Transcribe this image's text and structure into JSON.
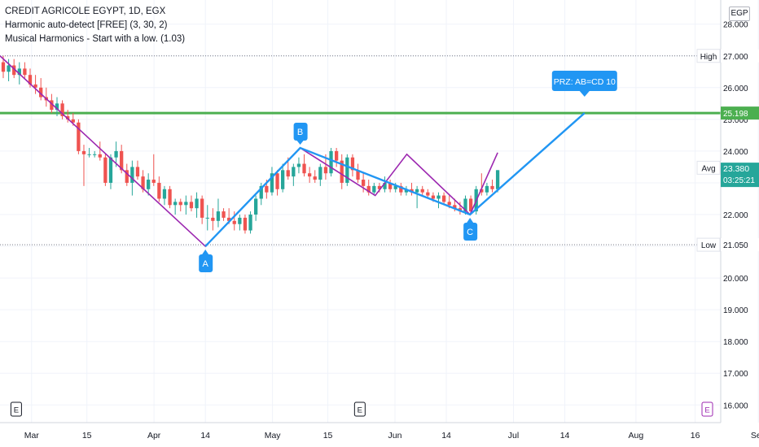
{
  "legend": {
    "symbol": "CREDIT AGRICOLE EGYPT, 1D, EGX",
    "indicator1": "Harmonic auto-detect [FREE] (3, 30, 2)",
    "indicator2": "Musical Harmonics - Start with a low. (1.03)"
  },
  "currency": "EGP",
  "chart_data": {
    "type": "candlestick",
    "x_ticks": [
      "Mar",
      "15",
      "Apr",
      "14",
      "May",
      "15",
      "Jun",
      "14",
      "Jul",
      "14",
      "Aug",
      "16",
      "Sep"
    ],
    "y_ticks": [
      "16.000",
      "17.000",
      "18.000",
      "19.000",
      "20.000",
      "21.000",
      "22.000",
      "23.000",
      "24.000",
      "25.000",
      "26.000",
      "27.000",
      "28.000"
    ],
    "ylim": [
      15.7,
      28.3
    ],
    "levels": {
      "high": {
        "label": "High",
        "value": "27.000"
      },
      "low": {
        "label": "Low",
        "value": "21.050"
      },
      "avg": {
        "label": "Avg",
        "value": "23.476"
      },
      "target": {
        "value": "25.198"
      },
      "last": {
        "value": "23.380",
        "countdown": "03:25:21"
      }
    },
    "pattern_points": [
      {
        "label": "A",
        "date": "2024-04-14",
        "price": 21.0
      },
      {
        "label": "B",
        "date": "2024-05-08",
        "price": 24.1
      },
      {
        "label": "C",
        "date": "2024-06-20",
        "price": 22.0
      }
    ],
    "prz_label": "PRZ: AB=CD 10",
    "prz_target": {
      "date": "2024-07-19",
      "price": 25.2
    },
    "earnings_markers": [
      "E",
      "E",
      "E"
    ],
    "colors": {
      "up": "#26a69a",
      "down": "#ef5350",
      "pattern": "#2196f3",
      "musical": "#9c27b0",
      "target_line": "#4caf50"
    },
    "candles": [
      {
        "o": 26.8,
        "h": 27.0,
        "l": 26.3,
        "c": 26.5
      },
      {
        "o": 26.5,
        "h": 26.9,
        "l": 26.2,
        "c": 26.7
      },
      {
        "o": 26.7,
        "h": 26.9,
        "l": 26.3,
        "c": 26.4
      },
      {
        "o": 26.4,
        "h": 26.8,
        "l": 26.1,
        "c": 26.6
      },
      {
        "o": 26.6,
        "h": 26.8,
        "l": 26.3,
        "c": 26.4
      },
      {
        "o": 26.4,
        "h": 26.6,
        "l": 26.0,
        "c": 26.1
      },
      {
        "o": 26.1,
        "h": 26.4,
        "l": 25.8,
        "c": 26.0
      },
      {
        "o": 26.0,
        "h": 26.3,
        "l": 25.6,
        "c": 25.7
      },
      {
        "o": 25.7,
        "h": 26.0,
        "l": 25.4,
        "c": 25.6
      },
      {
        "o": 25.6,
        "h": 25.8,
        "l": 25.2,
        "c": 25.3
      },
      {
        "o": 25.3,
        "h": 25.7,
        "l": 25.1,
        "c": 25.5
      },
      {
        "o": 25.5,
        "h": 25.6,
        "l": 25.0,
        "c": 25.1
      },
      {
        "o": 25.1,
        "h": 25.3,
        "l": 24.9,
        "c": 25.0
      },
      {
        "o": 25.0,
        "h": 25.2,
        "l": 24.8,
        "c": 24.9
      },
      {
        "o": 24.9,
        "h": 25.0,
        "l": 23.9,
        "c": 24.0
      },
      {
        "o": 24.0,
        "h": 24.2,
        "l": 22.9,
        "c": 23.9
      },
      {
        "o": 23.9,
        "h": 24.1,
        "l": 23.8,
        "c": 23.9
      },
      {
        "o": 23.9,
        "h": 24.0,
        "l": 23.8,
        "c": 23.9
      },
      {
        "o": 23.9,
        "h": 24.3,
        "l": 23.7,
        "c": 23.8
      },
      {
        "o": 23.8,
        "h": 23.9,
        "l": 22.9,
        "c": 23.0
      },
      {
        "o": 23.0,
        "h": 23.9,
        "l": 22.8,
        "c": 23.8
      },
      {
        "o": 23.8,
        "h": 24.3,
        "l": 23.5,
        "c": 24.0
      },
      {
        "o": 24.0,
        "h": 24.2,
        "l": 23.3,
        "c": 23.4
      },
      {
        "o": 23.4,
        "h": 23.6,
        "l": 22.9,
        "c": 23.0
      },
      {
        "o": 23.0,
        "h": 23.7,
        "l": 22.6,
        "c": 23.5
      },
      {
        "o": 23.5,
        "h": 23.7,
        "l": 23.1,
        "c": 23.2
      },
      {
        "o": 23.2,
        "h": 23.4,
        "l": 22.7,
        "c": 22.8
      },
      {
        "o": 22.8,
        "h": 23.3,
        "l": 22.6,
        "c": 23.1
      },
      {
        "o": 23.1,
        "h": 23.9,
        "l": 22.9,
        "c": 23.0
      },
      {
        "o": 23.0,
        "h": 23.2,
        "l": 22.4,
        "c": 22.5
      },
      {
        "o": 22.5,
        "h": 22.9,
        "l": 22.3,
        "c": 22.8
      },
      {
        "o": 22.8,
        "h": 22.9,
        "l": 22.2,
        "c": 22.3
      },
      {
        "o": 22.3,
        "h": 22.5,
        "l": 22.0,
        "c": 22.4
      },
      {
        "o": 22.4,
        "h": 22.5,
        "l": 22.1,
        "c": 22.3
      },
      {
        "o": 22.3,
        "h": 22.6,
        "l": 22.0,
        "c": 22.4
      },
      {
        "o": 22.4,
        "h": 22.6,
        "l": 22.1,
        "c": 22.2
      },
      {
        "o": 22.2,
        "h": 22.7,
        "l": 21.9,
        "c": 22.5
      },
      {
        "o": 22.5,
        "h": 22.6,
        "l": 21.7,
        "c": 21.9
      },
      {
        "o": 21.9,
        "h": 22.3,
        "l": 21.5,
        "c": 21.9
      },
      {
        "o": 21.9,
        "h": 22.2,
        "l": 21.5,
        "c": 21.8
      },
      {
        "o": 21.8,
        "h": 22.5,
        "l": 21.6,
        "c": 22.1
      },
      {
        "o": 22.1,
        "h": 22.2,
        "l": 21.8,
        "c": 21.9
      },
      {
        "o": 21.9,
        "h": 22.2,
        "l": 21.7,
        "c": 21.8
      },
      {
        "o": 21.8,
        "h": 22.1,
        "l": 21.5,
        "c": 21.7
      },
      {
        "o": 21.7,
        "h": 22.0,
        "l": 21.5,
        "c": 21.9
      },
      {
        "o": 21.9,
        "h": 22.0,
        "l": 21.4,
        "c": 21.5
      },
      {
        "o": 21.5,
        "h": 22.1,
        "l": 21.4,
        "c": 22.0
      },
      {
        "o": 22.0,
        "h": 22.6,
        "l": 21.8,
        "c": 22.5
      },
      {
        "o": 22.5,
        "h": 23.0,
        "l": 22.3,
        "c": 22.9
      },
      {
        "o": 22.9,
        "h": 23.1,
        "l": 22.5,
        "c": 22.7
      },
      {
        "o": 22.7,
        "h": 23.5,
        "l": 22.6,
        "c": 23.3
      },
      {
        "o": 23.3,
        "h": 23.4,
        "l": 22.6,
        "c": 22.8
      },
      {
        "o": 22.8,
        "h": 23.6,
        "l": 22.7,
        "c": 23.4
      },
      {
        "o": 23.4,
        "h": 23.8,
        "l": 23.1,
        "c": 23.2
      },
      {
        "o": 23.2,
        "h": 23.6,
        "l": 22.9,
        "c": 23.5
      },
      {
        "o": 23.5,
        "h": 23.8,
        "l": 23.3,
        "c": 23.6
      },
      {
        "o": 23.6,
        "h": 23.9,
        "l": 23.2,
        "c": 23.3
      },
      {
        "o": 23.3,
        "h": 23.5,
        "l": 23.0,
        "c": 23.2
      },
      {
        "o": 23.2,
        "h": 23.4,
        "l": 23.0,
        "c": 23.1
      },
      {
        "o": 23.1,
        "h": 23.6,
        "l": 22.9,
        "c": 23.5
      },
      {
        "o": 23.5,
        "h": 23.9,
        "l": 23.1,
        "c": 23.3
      },
      {
        "o": 23.3,
        "h": 24.1,
        "l": 23.2,
        "c": 24.0
      },
      {
        "o": 24.0,
        "h": 24.1,
        "l": 23.5,
        "c": 23.7
      },
      {
        "o": 23.7,
        "h": 23.9,
        "l": 22.8,
        "c": 23.0
      },
      {
        "o": 23.0,
        "h": 23.9,
        "l": 22.9,
        "c": 23.8
      },
      {
        "o": 23.8,
        "h": 23.9,
        "l": 23.2,
        "c": 23.4
      },
      {
        "o": 23.4,
        "h": 23.6,
        "l": 23.0,
        "c": 23.1
      },
      {
        "o": 23.1,
        "h": 23.3,
        "l": 22.7,
        "c": 22.9
      },
      {
        "o": 22.9,
        "h": 23.1,
        "l": 22.6,
        "c": 22.7
      },
      {
        "o": 22.7,
        "h": 23.0,
        "l": 22.6,
        "c": 22.9
      },
      {
        "o": 22.9,
        "h": 23.0,
        "l": 22.7,
        "c": 22.8
      },
      {
        "o": 22.8,
        "h": 23.2,
        "l": 22.7,
        "c": 23.0
      },
      {
        "o": 23.0,
        "h": 23.1,
        "l": 22.7,
        "c": 22.8
      },
      {
        "o": 22.8,
        "h": 23.0,
        "l": 22.7,
        "c": 22.9
      },
      {
        "o": 22.9,
        "h": 23.0,
        "l": 22.6,
        "c": 22.7
      },
      {
        "o": 22.7,
        "h": 22.9,
        "l": 22.6,
        "c": 22.8
      },
      {
        "o": 22.8,
        "h": 23.0,
        "l": 22.6,
        "c": 22.7
      },
      {
        "o": 22.7,
        "h": 22.9,
        "l": 22.2,
        "c": 22.8
      },
      {
        "o": 22.8,
        "h": 22.9,
        "l": 22.6,
        "c": 22.7
      },
      {
        "o": 22.7,
        "h": 22.8,
        "l": 22.5,
        "c": 22.6
      },
      {
        "o": 22.6,
        "h": 22.7,
        "l": 22.4,
        "c": 22.5
      },
      {
        "o": 22.5,
        "h": 22.7,
        "l": 22.2,
        "c": 22.6
      },
      {
        "o": 22.6,
        "h": 22.7,
        "l": 22.3,
        "c": 22.4
      },
      {
        "o": 22.4,
        "h": 22.6,
        "l": 22.2,
        "c": 22.3
      },
      {
        "o": 22.3,
        "h": 22.5,
        "l": 22.1,
        "c": 22.2
      },
      {
        "o": 22.2,
        "h": 22.4,
        "l": 22.0,
        "c": 22.1
      },
      {
        "o": 22.1,
        "h": 22.6,
        "l": 22.0,
        "c": 22.5
      },
      {
        "o": 22.5,
        "h": 22.6,
        "l": 22.0,
        "c": 22.1
      },
      {
        "o": 22.1,
        "h": 22.9,
        "l": 22.0,
        "c": 22.8
      },
      {
        "o": 22.8,
        "h": 23.3,
        "l": 22.6,
        "c": 22.7
      },
      {
        "o": 22.7,
        "h": 23.0,
        "l": 22.6,
        "c": 22.9
      },
      {
        "o": 22.9,
        "h": 23.1,
        "l": 22.7,
        "c": 22.8
      },
      {
        "o": 22.8,
        "h": 23.4,
        "l": 22.7,
        "c": 23.4
      }
    ]
  }
}
